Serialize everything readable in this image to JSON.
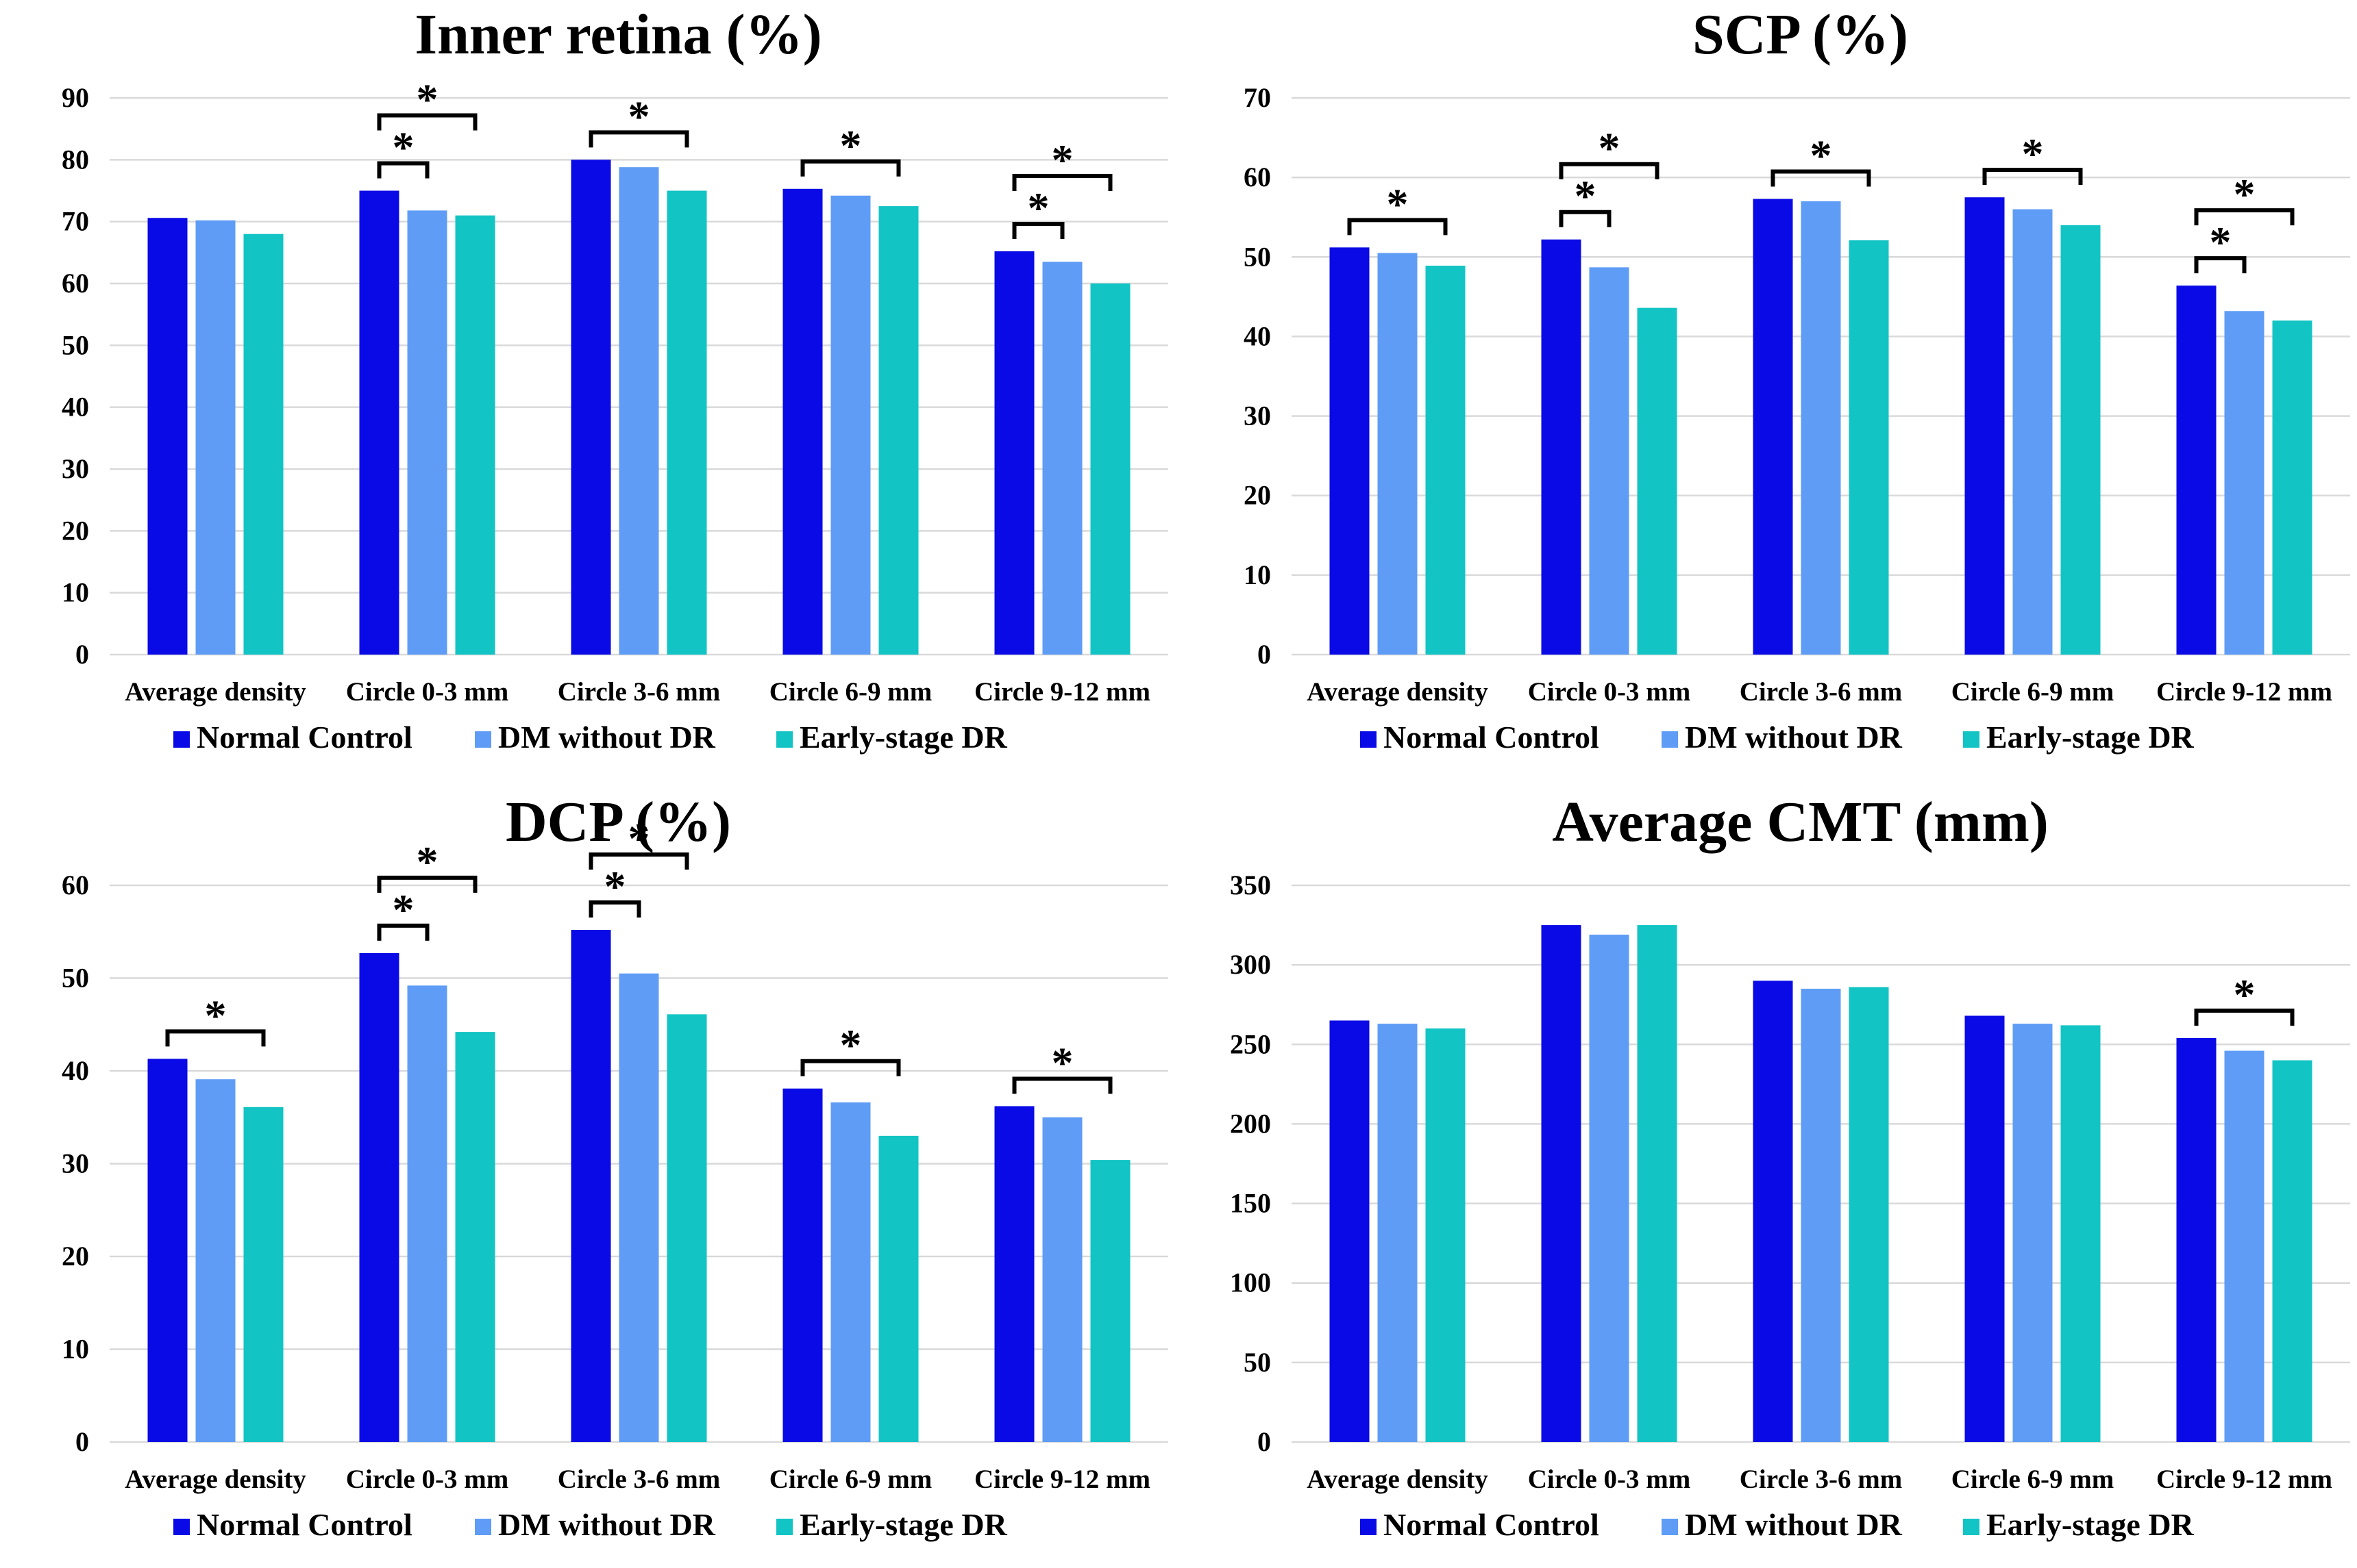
{
  "colors": {
    "normal_control": "#0a0ae6",
    "dm_without_dr": "#5f9cf5",
    "early_stage_dr": "#12c4c4",
    "gridline": "#d9d9d9",
    "axis_text": "#000000",
    "significance": "#000000"
  },
  "chart_data": [
    {
      "type": "bar",
      "title": "Inner retina (%)",
      "categories": [
        "Average density",
        "Circle 0-3 mm",
        "Circle 3-6 mm",
        "Circle 6-9 mm",
        "Circle 9-12 mm"
      ],
      "series": [
        {
          "name": "Normal Control",
          "values": [
            70.6,
            75.0,
            80.0,
            75.3,
            65.2
          ]
        },
        {
          "name": "DM without DR",
          "values": [
            70.2,
            71.8,
            78.8,
            74.2,
            63.5
          ]
        },
        {
          "name": "Early-stage DR",
          "values": [
            68.0,
            71.0,
            75.0,
            72.5,
            60.0
          ]
        }
      ],
      "ylim": [
        0,
        90
      ],
      "yticks": [
        0,
        10,
        20,
        30,
        40,
        50,
        60,
        70,
        80,
        90
      ],
      "xlabel": "",
      "ylabel": "",
      "legend": "bottom",
      "significance": [
        {
          "category": 1,
          "from": 0,
          "to": 1,
          "label": "*"
        },
        {
          "category": 1,
          "from": 0,
          "to": 2,
          "label": "*"
        },
        {
          "category": 2,
          "from": 0,
          "to": 2,
          "label": "*"
        },
        {
          "category": 3,
          "from": 0,
          "to": 2,
          "label": "*"
        },
        {
          "category": 4,
          "from": 0,
          "to": 1,
          "label": "*"
        },
        {
          "category": 4,
          "from": 0,
          "to": 2,
          "label": "*"
        }
      ]
    },
    {
      "type": "bar",
      "title": "SCP (%)",
      "categories": [
        "Average density",
        "Circle 0-3 mm",
        "Circle 3-6 mm",
        "Circle 6-9 mm",
        "Circle 9-12 mm"
      ],
      "series": [
        {
          "name": "Normal Control",
          "values": [
            51.2,
            52.2,
            57.3,
            57.5,
            46.4
          ]
        },
        {
          "name": "DM without DR",
          "values": [
            50.5,
            48.7,
            57.0,
            56.0,
            43.2
          ]
        },
        {
          "name": "Early-stage DR",
          "values": [
            48.9,
            43.6,
            52.1,
            54.0,
            42.0
          ]
        }
      ],
      "ylim": [
        0,
        70
      ],
      "yticks": [
        0,
        10,
        20,
        30,
        40,
        50,
        60,
        70
      ],
      "xlabel": "",
      "ylabel": "",
      "legend": "bottom",
      "significance": [
        {
          "category": 0,
          "from": 0,
          "to": 2,
          "label": "*"
        },
        {
          "category": 1,
          "from": 0,
          "to": 1,
          "label": "*"
        },
        {
          "category": 1,
          "from": 0,
          "to": 2,
          "label": "*"
        },
        {
          "category": 2,
          "from": 0,
          "to": 2,
          "label": "*"
        },
        {
          "category": 3,
          "from": 0,
          "to": 2,
          "label": "*"
        },
        {
          "category": 4,
          "from": 0,
          "to": 1,
          "label": "*"
        },
        {
          "category": 4,
          "from": 0,
          "to": 2,
          "label": "*"
        }
      ]
    },
    {
      "type": "bar",
      "title": "DCP (%)",
      "categories": [
        "Average density",
        "Circle 0-3 mm",
        "Circle 3-6 mm",
        "Circle 6-9 mm",
        "Circle 9-12 mm"
      ],
      "series": [
        {
          "name": "Normal Control",
          "values": [
            41.3,
            52.7,
            55.2,
            38.1,
            36.2
          ]
        },
        {
          "name": "DM without DR",
          "values": [
            39.1,
            49.2,
            50.5,
            36.6,
            35.0
          ]
        },
        {
          "name": "Early-stage DR",
          "values": [
            36.1,
            44.2,
            46.1,
            33.0,
            30.4
          ]
        }
      ],
      "ylim": [
        0,
        60
      ],
      "yticks": [
        0,
        10,
        20,
        30,
        40,
        50,
        60
      ],
      "xlabel": "",
      "ylabel": "",
      "legend": "bottom",
      "significance": [
        {
          "category": 0,
          "from": 0,
          "to": 2,
          "label": "*"
        },
        {
          "category": 1,
          "from": 0,
          "to": 1,
          "label": "*"
        },
        {
          "category": 1,
          "from": 0,
          "to": 2,
          "label": "*"
        },
        {
          "category": 2,
          "from": 0,
          "to": 1,
          "label": "*"
        },
        {
          "category": 2,
          "from": 0,
          "to": 2,
          "label": "*"
        },
        {
          "category": 3,
          "from": 0,
          "to": 2,
          "label": "*"
        },
        {
          "category": 4,
          "from": 0,
          "to": 2,
          "label": "*"
        }
      ]
    },
    {
      "type": "bar",
      "title": "Average CMT (mm)",
      "categories": [
        "Average density",
        "Circle 0-3 mm",
        "Circle 3-6 mm",
        "Circle 6-9 mm",
        "Circle 9-12 mm"
      ],
      "series": [
        {
          "name": "Normal Control",
          "values": [
            265,
            325,
            290,
            268,
            254
          ]
        },
        {
          "name": "DM without DR",
          "values": [
            263,
            319,
            285,
            263,
            246
          ]
        },
        {
          "name": "Early-stage DR",
          "values": [
            260,
            325,
            286,
            262,
            240
          ]
        }
      ],
      "ylim": [
        0,
        350
      ],
      "yticks": [
        0,
        50,
        100,
        150,
        200,
        250,
        300,
        350
      ],
      "xlabel": "",
      "ylabel": "",
      "legend": "bottom",
      "significance": [
        {
          "category": 4,
          "from": 0,
          "to": 2,
          "label": "*"
        }
      ]
    }
  ]
}
